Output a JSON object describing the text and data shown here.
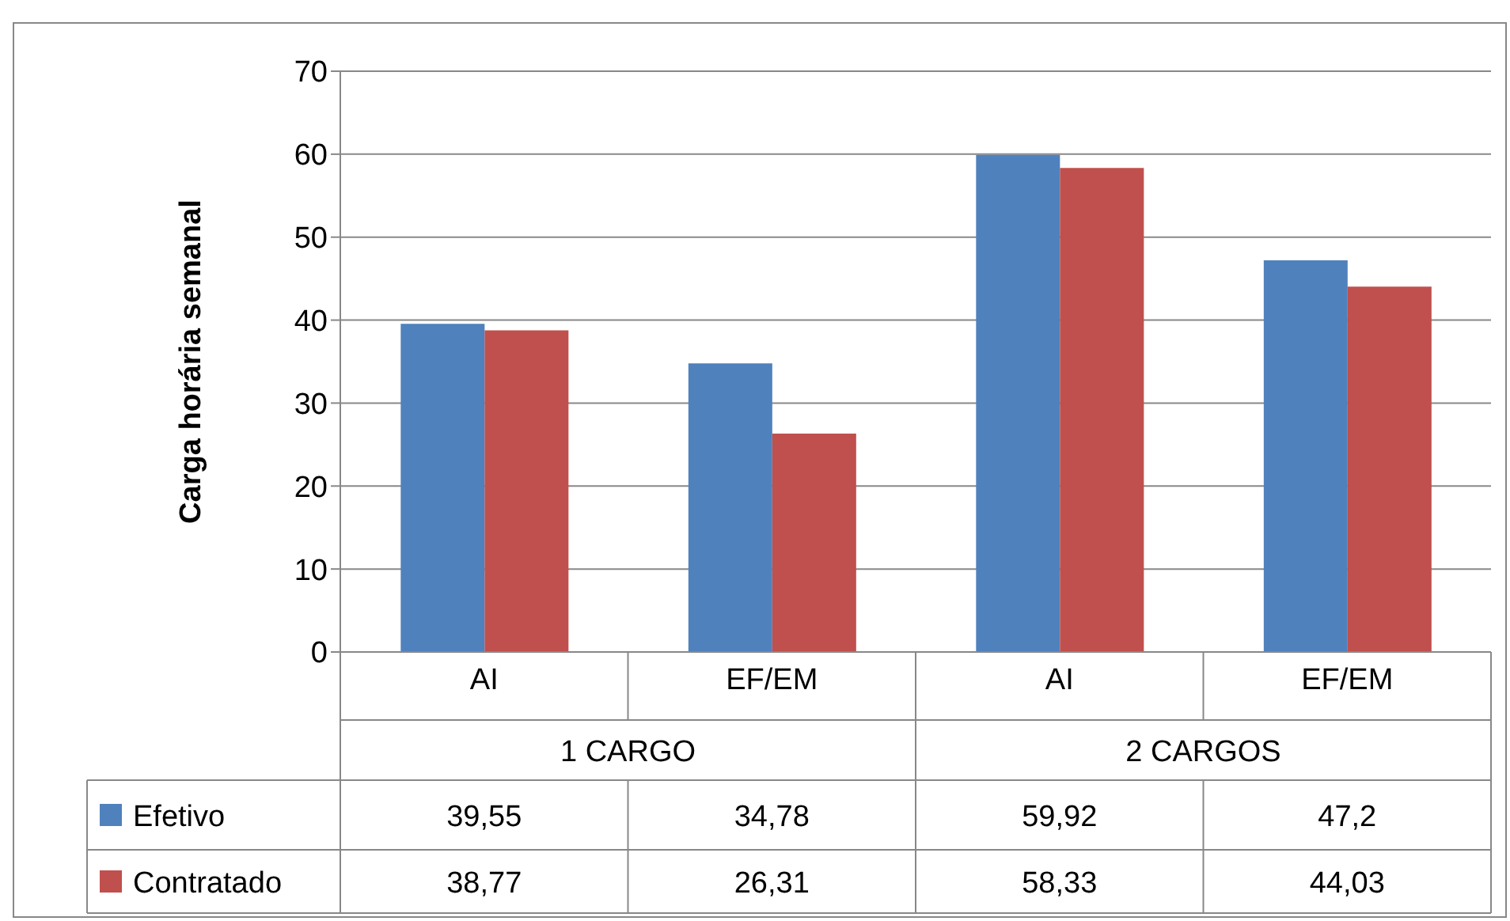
{
  "chart_data": {
    "type": "bar",
    "ylabel": "Carga horária semanal",
    "categories": [
      "AI",
      "EF/EM",
      "AI",
      "EF/EM"
    ],
    "series": [
      {
        "name": "Efetivo",
        "color": "#4f81bd",
        "values": [
          39.55,
          34.78,
          59.92,
          47.2
        ],
        "value_labels": [
          "39,55",
          "34,78",
          "59,92",
          "47,2"
        ]
      },
      {
        "name": "Contratado",
        "color": "#c0504d",
        "values": [
          38.77,
          26.31,
          58.33,
          44.03
        ],
        "value_labels": [
          "38,77",
          "26,31",
          "58,33",
          "44,03"
        ]
      }
    ],
    "annotations": [
      "1 CARGO",
      "2 CARGOS"
    ],
    "ylim": [
      0,
      70
    ],
    "yticks": [
      0,
      10,
      20,
      30,
      40,
      50,
      60,
      70
    ],
    "grid": "y",
    "legend": "bottom"
  }
}
